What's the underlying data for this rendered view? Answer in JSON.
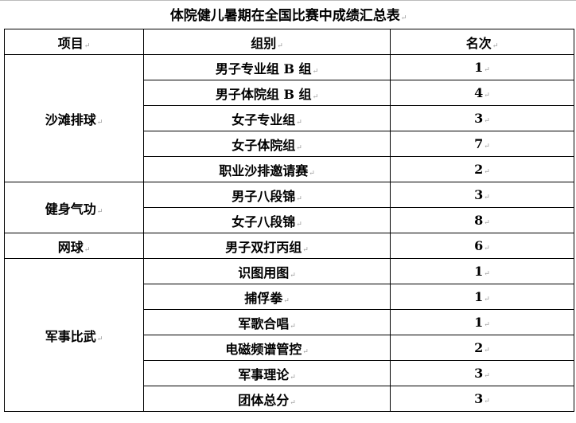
{
  "title": "体院健儿暑期在全国比赛中成绩汇总表",
  "headers": [
    "项目",
    "组别",
    "名次"
  ],
  "groups": [
    {
      "event": "沙滩排球",
      "rows": [
        {
          "group": "男子专业组 B 组",
          "rank": "1"
        },
        {
          "group": "男子体院组 B 组",
          "rank": "4"
        },
        {
          "group": "女子专业组",
          "rank": "3"
        },
        {
          "group": "女子体院组",
          "rank": "7"
        },
        {
          "group": "职业沙排邀请赛",
          "rank": "2"
        }
      ]
    },
    {
      "event": "健身气功",
      "rows": [
        {
          "group": "男子八段锦",
          "rank": "3"
        },
        {
          "group": "女子八段锦",
          "rank": "8"
        }
      ]
    },
    {
      "event": "网球",
      "rows": [
        {
          "group": "男子双打丙组",
          "rank": "6"
        }
      ]
    },
    {
      "event": "军事比武",
      "rows": [
        {
          "group": "识图用图",
          "rank": "1"
        },
        {
          "group": "捕俘拳",
          "rank": "1"
        },
        {
          "group": "军歌合唱",
          "rank": "1"
        },
        {
          "group": "电磁频谱管控",
          "rank": "2"
        },
        {
          "group": "军事理论",
          "rank": "3"
        },
        {
          "group": "团体总分",
          "rank": "3"
        }
      ]
    }
  ]
}
